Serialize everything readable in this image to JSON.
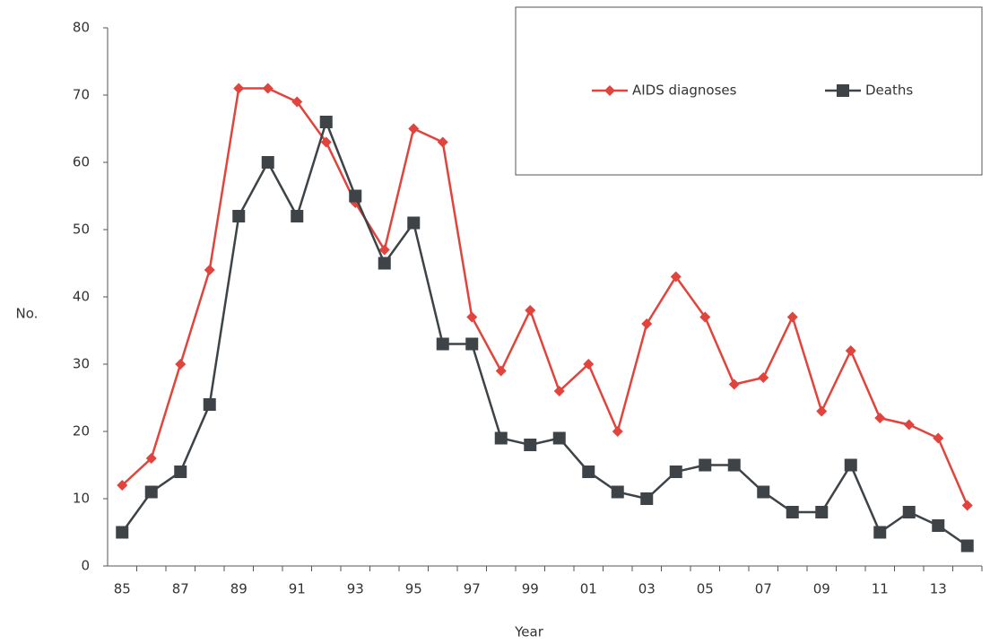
{
  "chart_data": {
    "type": "line",
    "x_label": "Year",
    "y_label": "No.",
    "categories": [
      "85",
      null,
      "87",
      null,
      "89",
      null,
      "91",
      null,
      "93",
      null,
      "95",
      null,
      "97",
      null,
      "99",
      null,
      "01",
      null,
      "03",
      null,
      "05",
      null,
      "07",
      null,
      "09",
      null,
      "11",
      null,
      "13",
      null
    ],
    "series": [
      {
        "name": "AIDS diagnoses",
        "color": "#e0443c",
        "marker": "diamond",
        "values": [
          12,
          16,
          30,
          44,
          71,
          71,
          69,
          63,
          54,
          47,
          65,
          63,
          37,
          29,
          38,
          26,
          30,
          20,
          36,
          43,
          37,
          27,
          28,
          37,
          23,
          32,
          22,
          21,
          19,
          9
        ]
      },
      {
        "name": "Deaths",
        "color": "#3d4346",
        "marker": "square",
        "values": [
          5,
          11,
          14,
          24,
          52,
          60,
          52,
          66,
          55,
          45,
          51,
          33,
          33,
          19,
          18,
          19,
          14,
          11,
          10,
          14,
          15,
          15,
          11,
          8,
          8,
          15,
          5,
          8,
          6,
          3
        ]
      }
    ],
    "ylim": [
      0,
      80
    ],
    "yticks": [
      0,
      10,
      20,
      30,
      40,
      50,
      60,
      70,
      80
    ],
    "grid": false
  }
}
